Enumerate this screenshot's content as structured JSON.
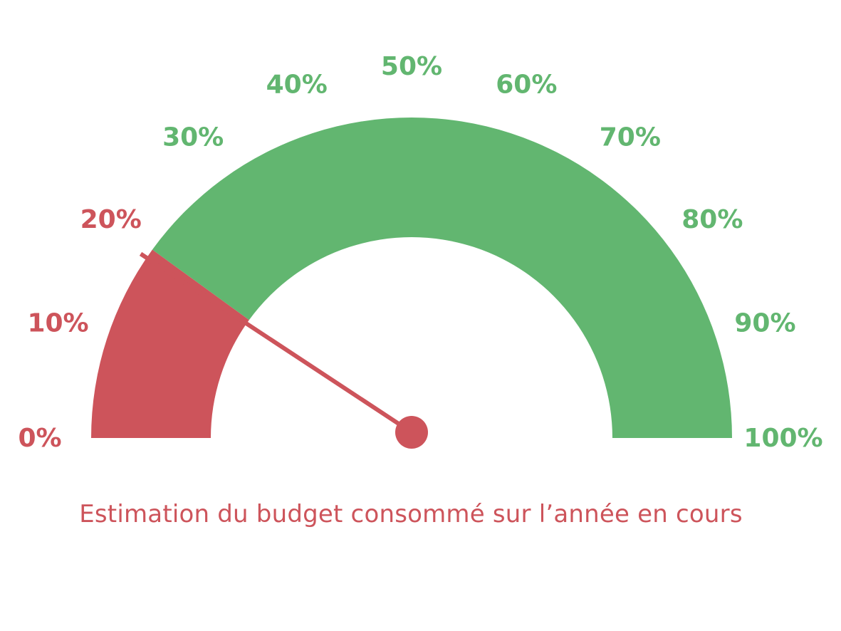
{
  "chart_data": {
    "type": "gauge",
    "value": 19,
    "range": [
      0,
      100
    ],
    "unit": "%",
    "threshold": 20,
    "segments": [
      {
        "from": 0,
        "to": 20,
        "color": "#cd545b"
      },
      {
        "from": 20,
        "to": 100,
        "color": "#62b670"
      }
    ],
    "tick_labels": [
      "0%",
      "10%",
      "20%",
      "30%",
      "40%",
      "50%",
      "60%",
      "70%",
      "80%",
      "90%",
      "100%"
    ],
    "tick_colors": [
      "#cd545b",
      "#cd545b",
      "#cd545b",
      "#62b670",
      "#62b670",
      "#62b670",
      "#62b670",
      "#62b670",
      "#62b670",
      "#62b670",
      "#62b670"
    ],
    "needle_color": "#cd545b",
    "caption": "Estimation du budget consommé sur l’année en cours",
    "caption_color": "#cd545b"
  }
}
